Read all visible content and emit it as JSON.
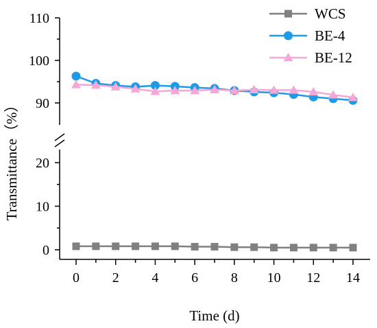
{
  "chart_data": {
    "type": "line",
    "xlabel": "Time (d)",
    "ylabel": "Transmittance（%）",
    "xlim": [
      -1,
      15
    ],
    "x_ticks": [
      0,
      2,
      4,
      6,
      8,
      10,
      12,
      14
    ],
    "y_ticks": [
      0,
      10,
      20,
      90,
      100,
      110
    ],
    "y_axis_break": {
      "lower_segment": [
        -2,
        24
      ],
      "upper_segment": [
        86,
        110
      ]
    },
    "legend_position": "top-right",
    "grid": false,
    "x": [
      0,
      1,
      2,
      3,
      4,
      5,
      6,
      7,
      8,
      9,
      10,
      11,
      12,
      13,
      14
    ],
    "series": [
      {
        "name": "WCS",
        "color": "#808080",
        "marker": "square",
        "values": [
          0.8,
          0.8,
          0.8,
          0.8,
          0.8,
          0.8,
          0.7,
          0.7,
          0.6,
          0.6,
          0.5,
          0.5,
          0.5,
          0.5,
          0.5
        ]
      },
      {
        "name": "BE-4",
        "color": "#1e9be6",
        "marker": "circle",
        "values": [
          96.3,
          94.6,
          94.1,
          93.8,
          94.1,
          93.9,
          93.6,
          93.4,
          92.9,
          92.6,
          92.4,
          92.0,
          91.4,
          91.0,
          90.6
        ]
      },
      {
        "name": "BE-12",
        "color": "#f3a8d6",
        "marker": "triangle",
        "values": [
          94.3,
          94.2,
          93.8,
          93.3,
          92.7,
          92.9,
          92.9,
          93.1,
          92.9,
          93.1,
          93.0,
          93.0,
          92.6,
          91.9,
          91.3
        ]
      }
    ]
  }
}
